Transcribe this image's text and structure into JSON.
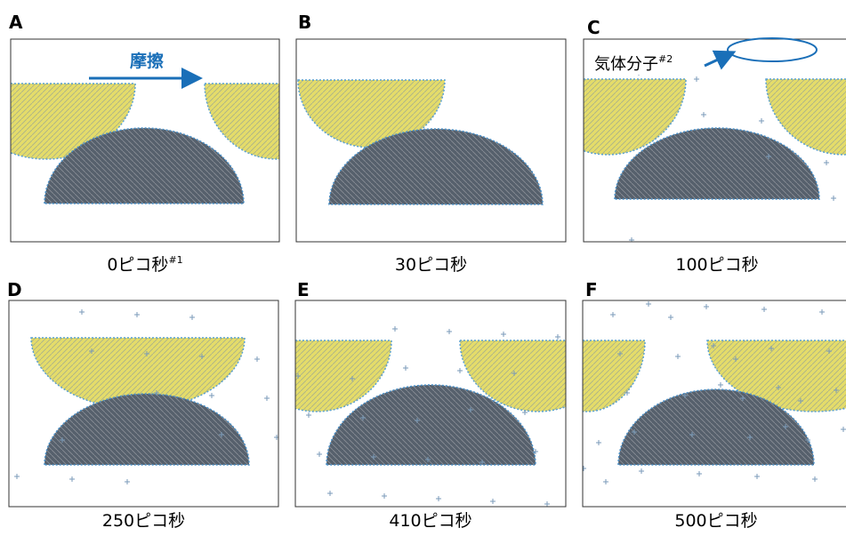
{
  "panels": [
    {
      "label": "A",
      "caption": "0ピコ秒",
      "note": "#1"
    },
    {
      "label": "B",
      "caption": "30ピコ秒"
    },
    {
      "label": "C",
      "caption": "100ピコ秒"
    },
    {
      "label": "D",
      "caption": "250ピコ秒"
    },
    {
      "label": "E",
      "caption": "410ピコ秒"
    },
    {
      "label": "F",
      "caption": "500ピコ秒"
    }
  ],
  "annotations": {
    "friction": "摩擦",
    "gas": "気体分子",
    "gas_note": "#2"
  }
}
